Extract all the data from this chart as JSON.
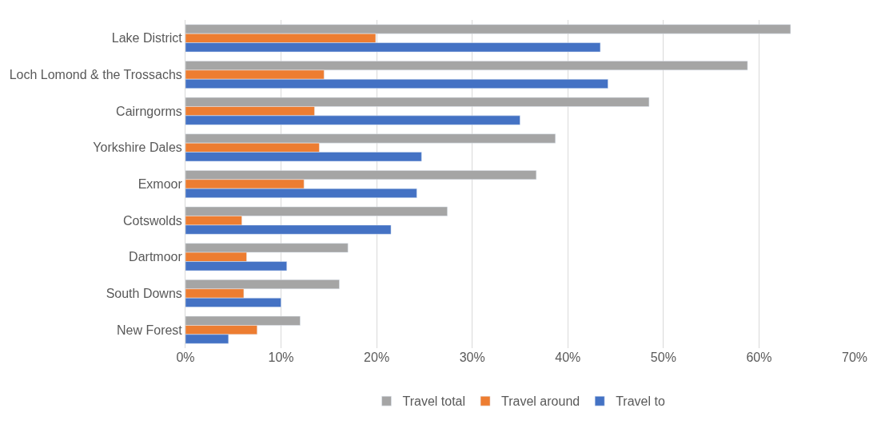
{
  "chart_data": {
    "type": "bar",
    "orientation": "horizontal",
    "categories": [
      "Lake District",
      "Loch Lomond & the Trossachs",
      "Cairngorms",
      "Yorkshire Dales",
      "Exmoor",
      "Cotswolds",
      "Dartmoor",
      "South Downs",
      "New Forest"
    ],
    "series": [
      {
        "name": "Travel total",
        "color": "#a5a5a5",
        "values": [
          63.3,
          58.8,
          48.5,
          38.7,
          36.7,
          27.4,
          17.0,
          16.1,
          12.0
        ]
      },
      {
        "name": "Travel around",
        "color": "#ed7d31",
        "values": [
          19.9,
          14.5,
          13.5,
          14.0,
          12.4,
          5.9,
          6.4,
          6.1,
          7.5
        ]
      },
      {
        "name": "Travel to",
        "color": "#4472c4",
        "values": [
          43.4,
          44.2,
          35.0,
          24.7,
          24.2,
          21.5,
          10.6,
          10.0,
          4.5
        ]
      }
    ],
    "xlim": [
      0,
      70
    ],
    "xticks": [
      {
        "value": 0,
        "label": "0%"
      },
      {
        "value": 10,
        "label": "10%"
      },
      {
        "value": 20,
        "label": "20%"
      },
      {
        "value": 30,
        "label": "30%"
      },
      {
        "value": 40,
        "label": "40%"
      },
      {
        "value": 50,
        "label": "50%"
      },
      {
        "value": 60,
        "label": "60%"
      },
      {
        "value": 70,
        "label": "70%"
      }
    ],
    "grid": "x",
    "legend": "bottom"
  }
}
